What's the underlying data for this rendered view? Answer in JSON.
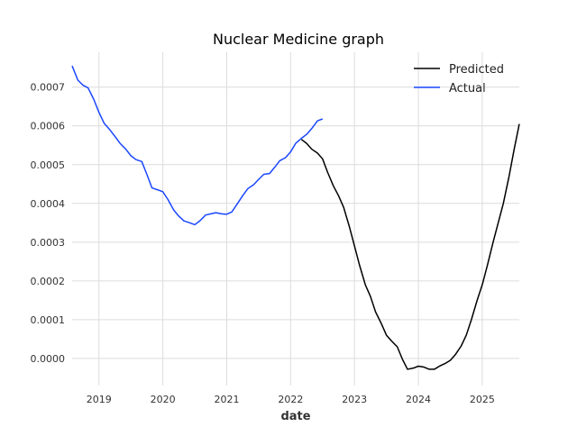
{
  "chart_data": {
    "type": "line",
    "title": "Nuclear Medicine graph",
    "xlabel": "date",
    "ylabel": "",
    "xlim": [
      2018.58,
      2025.58
    ],
    "ylim": [
      -7e-05,
      0.00079
    ],
    "x_ticks": [
      2019,
      2020,
      2021,
      2022,
      2023,
      2024,
      2025
    ],
    "x_tick_labels": [
      "2019",
      "2020",
      "2021",
      "2022",
      "2023",
      "2024",
      "2025"
    ],
    "y_ticks": [
      0.0,
      0.0001,
      0.0002,
      0.0003,
      0.0004,
      0.0005,
      0.0006,
      0.0007
    ],
    "y_tick_labels": [
      "0.0000",
      "0.0001",
      "0.0002",
      "0.0003",
      "0.0004",
      "0.0005",
      "0.0006",
      "0.0007"
    ],
    "grid": true,
    "legend": "top-right",
    "series": [
      {
        "name": "Predicted",
        "color": "#000000",
        "points": [
          [
            2022.17,
            0.000565
          ],
          [
            2022.25,
            0.000555
          ],
          [
            2022.33,
            0.00054
          ],
          [
            2022.42,
            0.00053
          ],
          [
            2022.5,
            0.000515
          ],
          [
            2022.58,
            0.00048
          ],
          [
            2022.67,
            0.000445
          ],
          [
            2022.75,
            0.00042
          ],
          [
            2022.83,
            0.00039
          ],
          [
            2022.92,
            0.00034
          ],
          [
            2023.0,
            0.00029
          ],
          [
            2023.08,
            0.00024
          ],
          [
            2023.17,
            0.00019
          ],
          [
            2023.25,
            0.00016
          ],
          [
            2023.33,
            0.00012
          ],
          [
            2023.42,
            9e-05
          ],
          [
            2023.5,
            6e-05
          ],
          [
            2023.58,
            4.5e-05
          ],
          [
            2023.67,
            3e-05
          ],
          [
            2023.75,
            -2e-06
          ],
          [
            2023.83,
            -2.8e-05
          ],
          [
            2023.92,
            -2.5e-05
          ],
          [
            2024.0,
            -2e-05
          ],
          [
            2024.08,
            -2.2e-05
          ],
          [
            2024.17,
            -2.8e-05
          ],
          [
            2024.25,
            -2.8e-05
          ],
          [
            2024.33,
            -2e-05
          ],
          [
            2024.42,
            -1.3e-05
          ],
          [
            2024.5,
            -5e-06
          ],
          [
            2024.58,
            1e-05
          ],
          [
            2024.67,
            3.2e-05
          ],
          [
            2024.75,
            6e-05
          ],
          [
            2024.83,
            0.0001
          ],
          [
            2024.92,
            0.00015
          ],
          [
            2025.0,
            0.00019
          ],
          [
            2025.08,
            0.00024
          ],
          [
            2025.17,
            0.0003
          ],
          [
            2025.25,
            0.00035
          ],
          [
            2025.33,
            0.0004
          ],
          [
            2025.42,
            0.00047
          ],
          [
            2025.5,
            0.00054
          ],
          [
            2025.58,
            0.000605
          ]
        ]
      },
      {
        "name": "Actual",
        "color": "#1a47ff",
        "points": [
          [
            2018.58,
            0.000755
          ],
          [
            2018.67,
            0.000718
          ],
          [
            2018.75,
            0.000705
          ],
          [
            2018.83,
            0.000698
          ],
          [
            2018.92,
            0.000668
          ],
          [
            2019.0,
            0.000635
          ],
          [
            2019.08,
            0.000607
          ],
          [
            2019.17,
            0.00059
          ],
          [
            2019.25,
            0.000573
          ],
          [
            2019.33,
            0.000555
          ],
          [
            2019.42,
            0.00054
          ],
          [
            2019.5,
            0.000523
          ],
          [
            2019.58,
            0.000513
          ],
          [
            2019.67,
            0.000508
          ],
          [
            2019.75,
            0.000475
          ],
          [
            2019.83,
            0.00044
          ],
          [
            2019.92,
            0.000435
          ],
          [
            2020.0,
            0.00043
          ],
          [
            2020.08,
            0.00041
          ],
          [
            2020.17,
            0.000383
          ],
          [
            2020.25,
            0.000367
          ],
          [
            2020.33,
            0.000355
          ],
          [
            2020.42,
            0.00035
          ],
          [
            2020.5,
            0.000345
          ],
          [
            2020.58,
            0.000355
          ],
          [
            2020.67,
            0.00037
          ],
          [
            2020.75,
            0.000373
          ],
          [
            2020.83,
            0.000376
          ],
          [
            2020.92,
            0.000373
          ],
          [
            2021.0,
            0.000372
          ],
          [
            2021.08,
            0.000378
          ],
          [
            2021.17,
            0.0004
          ],
          [
            2021.25,
            0.00042
          ],
          [
            2021.33,
            0.000438
          ],
          [
            2021.42,
            0.000448
          ],
          [
            2021.5,
            0.000462
          ],
          [
            2021.58,
            0.000475
          ],
          [
            2021.67,
            0.000477
          ],
          [
            2021.75,
            0.000493
          ],
          [
            2021.83,
            0.00051
          ],
          [
            2021.92,
            0.000518
          ],
          [
            2022.0,
            0.000533
          ],
          [
            2022.08,
            0.000555
          ],
          [
            2022.17,
            0.000568
          ],
          [
            2022.25,
            0.000578
          ],
          [
            2022.33,
            0.000593
          ],
          [
            2022.42,
            0.000613
          ],
          [
            2022.5,
            0.000618
          ]
        ]
      }
    ]
  }
}
